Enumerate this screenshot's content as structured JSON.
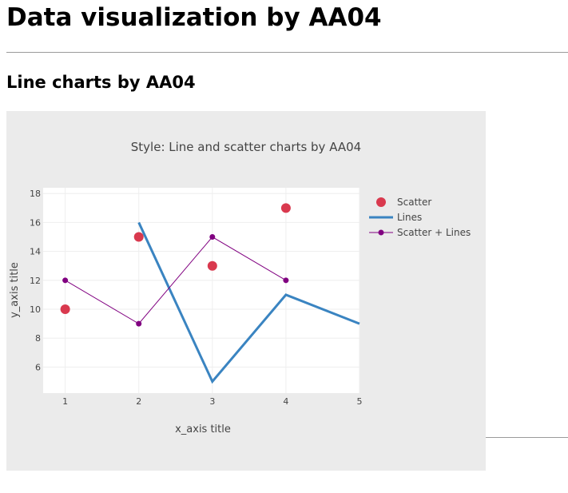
{
  "page": {
    "title": "Data visualization by AA04",
    "section_heading": "Line charts by AA04"
  },
  "chart_data": {
    "type": "line",
    "title": "Style: Line and scatter charts by AA04",
    "xlabel": "x_axis title",
    "ylabel": "y_axis title",
    "xlim": [
      0.7,
      5
    ],
    "ylim": [
      4.2,
      18.4
    ],
    "x_ticks": [
      1,
      2,
      3,
      4,
      5
    ],
    "y_ticks": [
      6,
      8,
      10,
      12,
      14,
      16,
      18
    ],
    "grid": true,
    "legend_position": "right",
    "background_color": "#ebebeb",
    "plot_background_color": "#ffffff",
    "series": [
      {
        "name": "Scatter",
        "mode": "markers",
        "color": "#d9394e",
        "x": [
          1,
          2,
          3,
          4
        ],
        "y": [
          10,
          15,
          13,
          17
        ]
      },
      {
        "name": "Lines",
        "mode": "lines",
        "color": "#3a84c1",
        "x": [
          2,
          3,
          4,
          5
        ],
        "y": [
          16,
          5,
          11,
          9
        ]
      },
      {
        "name": "Scatter + Lines",
        "mode": "lines+markers",
        "color": "#800080",
        "x": [
          1,
          2,
          3,
          4
        ],
        "y": [
          12,
          9,
          15,
          12
        ]
      }
    ]
  }
}
